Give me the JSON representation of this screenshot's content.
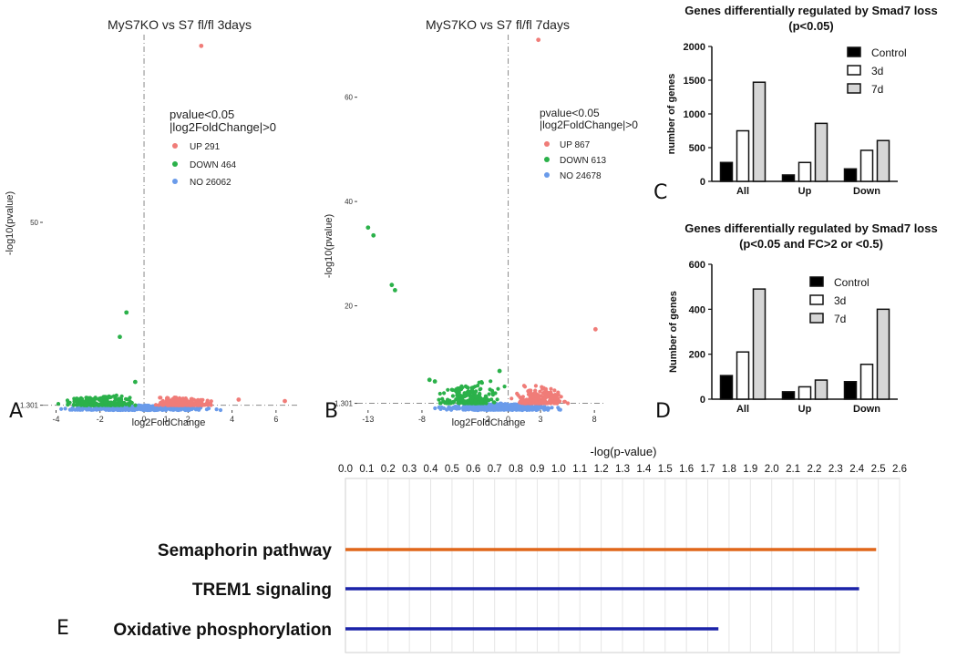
{
  "chart_data": [
    {
      "panel": "A",
      "type": "scatter",
      "title": "MyS7KO vs S7 fl/fl 3days",
      "xlabel": "log2FoldChange",
      "ylabel": "-log10(pvalue)",
      "xlim": [
        -4.6,
        7.0
      ],
      "ylim": [
        0,
        100
      ],
      "xticks": [
        "-4",
        "-2",
        "0",
        "1",
        "2",
        "4",
        "6"
      ],
      "xtick_values": [
        -4,
        -2,
        0,
        1,
        2,
        4,
        6
      ],
      "yticks": [
        "1.301",
        "50"
      ],
      "ytick_values": [
        1.301,
        50
      ],
      "threshold_y": 1.301,
      "legend": {
        "title_lines": [
          "pvalue<0.05",
          "|log2FoldChange|>0"
        ],
        "entries": [
          {
            "label": "UP 291",
            "color": "#f07c78"
          },
          {
            "label": "DOWN 464",
            "color": "#2bb14a"
          },
          {
            "label": "NO 26062",
            "color": "#6a9bea"
          }
        ]
      },
      "highlights": [
        {
          "x": 2.6,
          "y": 97.0,
          "group": "up"
        },
        {
          "x": -0.8,
          "y": 26.0,
          "group": "down"
        },
        {
          "x": -1.1,
          "y": 19.5,
          "group": "down"
        },
        {
          "x": -0.4,
          "y": 7.5,
          "group": "down"
        },
        {
          "x": 6.4,
          "y": 2.4,
          "group": "up"
        },
        {
          "x": 4.3,
          "y": 2.8,
          "group": "up"
        }
      ],
      "clouds": [
        {
          "group": "no",
          "x": [
            -4.2,
            3.8
          ],
          "y": [
            0,
            1.3
          ]
        },
        {
          "group": "down",
          "x": [
            -4.3,
            -0.05
          ],
          "y": [
            1.3,
            4.5
          ]
        },
        {
          "group": "up",
          "x": [
            0.05,
            3.6
          ],
          "y": [
            1.3,
            4.0
          ]
        }
      ]
    },
    {
      "panel": "B",
      "type": "scatter",
      "title": "MyS7KO vs S7 fl/fl 7days",
      "xlabel": "log2FoldChange",
      "ylabel": "-log10(pvalue)",
      "xlim": [
        -14.0,
        9.0
      ],
      "ylim": [
        0,
        72
      ],
      "xticks": [
        "-13",
        "-8",
        "-2",
        "0",
        "3",
        "8"
      ],
      "xtick_values": [
        -13,
        -8,
        -2,
        0,
        3,
        8
      ],
      "yticks": [
        "1.301",
        "20",
        "40",
        "60"
      ],
      "ytick_values": [
        1.301,
        20,
        40,
        60
      ],
      "threshold_y": 1.301,
      "legend": {
        "title_lines": [
          "pvalue<0.05",
          "|log2FoldChange|>0"
        ],
        "entries": [
          {
            "label": "UP 867",
            "color": "#f07c78"
          },
          {
            "label": "DOWN 613",
            "color": "#2bb14a"
          },
          {
            "label": "NO 24678",
            "color": "#6a9bea"
          }
        ]
      },
      "highlights": [
        {
          "x": 2.8,
          "y": 71.0,
          "group": "up"
        },
        {
          "x": -13.0,
          "y": 35.0,
          "group": "down"
        },
        {
          "x": -12.5,
          "y": 33.5,
          "group": "down"
        },
        {
          "x": -10.8,
          "y": 24.0,
          "group": "down"
        },
        {
          "x": -10.5,
          "y": 23.0,
          "group": "down"
        },
        {
          "x": 8.1,
          "y": 15.5,
          "group": "up"
        },
        {
          "x": -7.3,
          "y": 5.8,
          "group": "down"
        },
        {
          "x": -6.8,
          "y": 5.5,
          "group": "down"
        },
        {
          "x": -0.8,
          "y": 7.5,
          "group": "down"
        }
      ],
      "clouds": [
        {
          "group": "no",
          "x": [
            -7.5,
            6.0
          ],
          "y": [
            0,
            1.3
          ]
        },
        {
          "group": "down",
          "x": [
            -7.2,
            -0.05
          ],
          "y": [
            1.3,
            6.5
          ]
        },
        {
          "group": "up",
          "x": [
            0.05,
            6.0
          ],
          "y": [
            1.3,
            6.0
          ]
        }
      ]
    },
    {
      "panel": "C",
      "type": "bar",
      "title": "Genes differentially regulated by Smad7 loss",
      "subtitle": "(p<0.05)",
      "ylabel": "number of genes",
      "categories": [
        "All",
        "Up",
        "Down"
      ],
      "ylim": [
        0,
        2000
      ],
      "yticks": [
        "0",
        "500",
        "1000",
        "1500",
        "2000"
      ],
      "ytick_values": [
        0,
        500,
        1000,
        1500,
        2000
      ],
      "series": [
        {
          "name": "Control",
          "values": [
            280,
            95,
            185
          ],
          "color": "#000000"
        },
        {
          "name": "3d",
          "values": [
            750,
            280,
            460
          ],
          "color": "#ffffff"
        },
        {
          "name": "7d",
          "values": [
            1470,
            860,
            605
          ],
          "color": "#d6d6d6"
        }
      ]
    },
    {
      "panel": "D",
      "type": "bar",
      "title": "Genes differentially regulated by Smad7 loss",
      "subtitle": "(p<0.05 and FC>2 or <0.5)",
      "ylabel": "Number of genes",
      "categories": [
        "All",
        "Up",
        "Down"
      ],
      "ylim": [
        0,
        600
      ],
      "yticks": [
        "0",
        "200",
        "400",
        "600"
      ],
      "ytick_values": [
        0,
        200,
        400,
        600
      ],
      "series": [
        {
          "name": "Control",
          "values": [
            105,
            33,
            78
          ],
          "color": "#000000"
        },
        {
          "name": "3d",
          "values": [
            210,
            55,
            155
          ],
          "color": "#ffffff"
        },
        {
          "name": "7d",
          "values": [
            490,
            85,
            400
          ],
          "color": "#d6d6d6"
        }
      ]
    },
    {
      "panel": "E",
      "type": "bar",
      "orientation": "horizontal",
      "xlabel": "-log(p-value)",
      "xlim": [
        0,
        2.6
      ],
      "xticks": [
        "0.0",
        "0.1",
        "0.2",
        "0.3",
        "0.4",
        "0.5",
        "0.6",
        "0.7",
        "0.8",
        "0.9",
        "1.0",
        "1.1",
        "1.2",
        "1.3",
        "1.4",
        "1.5",
        "1.6",
        "1.7",
        "1.8",
        "1.9",
        "2.0",
        "2.1",
        "2.2",
        "2.3",
        "2.4",
        "2.5",
        "2.6"
      ],
      "categories": [
        "Semaphorin pathway",
        "TREM1 signaling",
        "Oxidative phosphorylation"
      ],
      "values": [
        2.49,
        2.41,
        1.75
      ],
      "colors": [
        "#e0661a",
        "#1a22a8",
        "#1a22a8"
      ]
    }
  ],
  "panel_letters": {
    "a": "A",
    "b": "B",
    "c": "C",
    "d": "D",
    "e": "E"
  }
}
